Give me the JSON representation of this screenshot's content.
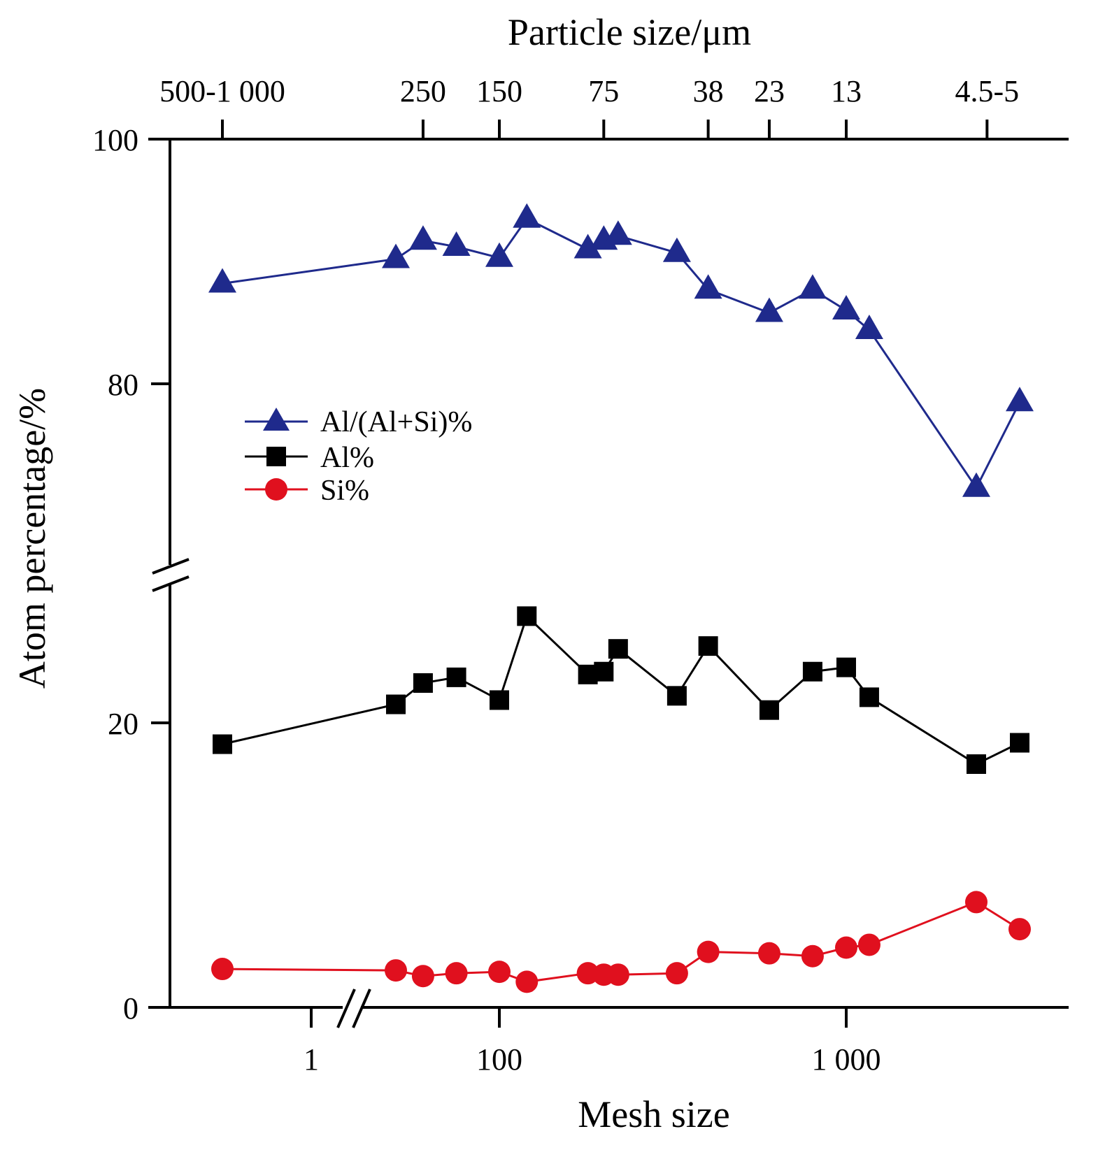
{
  "chart_data": {
    "type": "line",
    "xlabel": "Mesh size",
    "x2label": "Particle size/μm",
    "ylabel": "Atom percentage/%",
    "x_scale": "log (broken axis)",
    "y_axis_break": [
      30,
      70
    ],
    "y_ticks": [
      {
        "value": 0,
        "label": "0"
      },
      {
        "value": 20,
        "label": "20"
      },
      {
        "value": 80,
        "label": "80"
      },
      {
        "value": 100,
        "label": "100"
      }
    ],
    "x_ticks": [
      {
        "value": 1,
        "label": "1"
      },
      {
        "value": 100,
        "label": "100"
      },
      {
        "value": 1000,
        "label": "1 000"
      }
    ],
    "top_ticks": [
      {
        "mesh": 0.5,
        "label": "500-1 000"
      },
      {
        "mesh": 60,
        "label": "250"
      },
      {
        "mesh": 100,
        "label": "150"
      },
      {
        "mesh": 200,
        "label": "75"
      },
      {
        "mesh": 400,
        "label": "38"
      },
      {
        "mesh": 600,
        "label": "23"
      },
      {
        "mesh": 1000,
        "label": "13"
      },
      {
        "mesh": 3000,
        "label": "4.5-5"
      }
    ],
    "x": [
      0.5,
      50,
      60,
      75,
      100,
      120,
      180,
      200,
      220,
      325,
      400,
      600,
      800,
      1000,
      1200,
      2800,
      3700
    ],
    "legend_position": "left-middle",
    "grid": false,
    "series": [
      {
        "name": "Al/(Al+Si)%",
        "color": "#1f2a8c",
        "marker": "triangle",
        "values": [
          88.2,
          90.2,
          91.7,
          91.2,
          90.3,
          93.5,
          91.0,
          91.7,
          92.1,
          90.7,
          87.7,
          85.8,
          87.7,
          86.0,
          84.4,
          71.5,
          78.5
        ]
      },
      {
        "name": "Al%",
        "color": "#000000",
        "marker": "square",
        "values": [
          18.5,
          21.3,
          22.8,
          23.2,
          21.6,
          27.5,
          23.4,
          23.6,
          25.2,
          21.9,
          25.4,
          20.9,
          23.6,
          23.9,
          21.8,
          17.1,
          18.6
        ]
      },
      {
        "name": "Si%",
        "color": "#e0101e",
        "marker": "circle",
        "values": [
          2.7,
          2.6,
          2.2,
          2.4,
          2.5,
          1.8,
          2.4,
          2.3,
          2.3,
          2.4,
          3.9,
          3.8,
          3.6,
          4.2,
          4.4,
          7.4,
          5.5
        ]
      }
    ]
  }
}
